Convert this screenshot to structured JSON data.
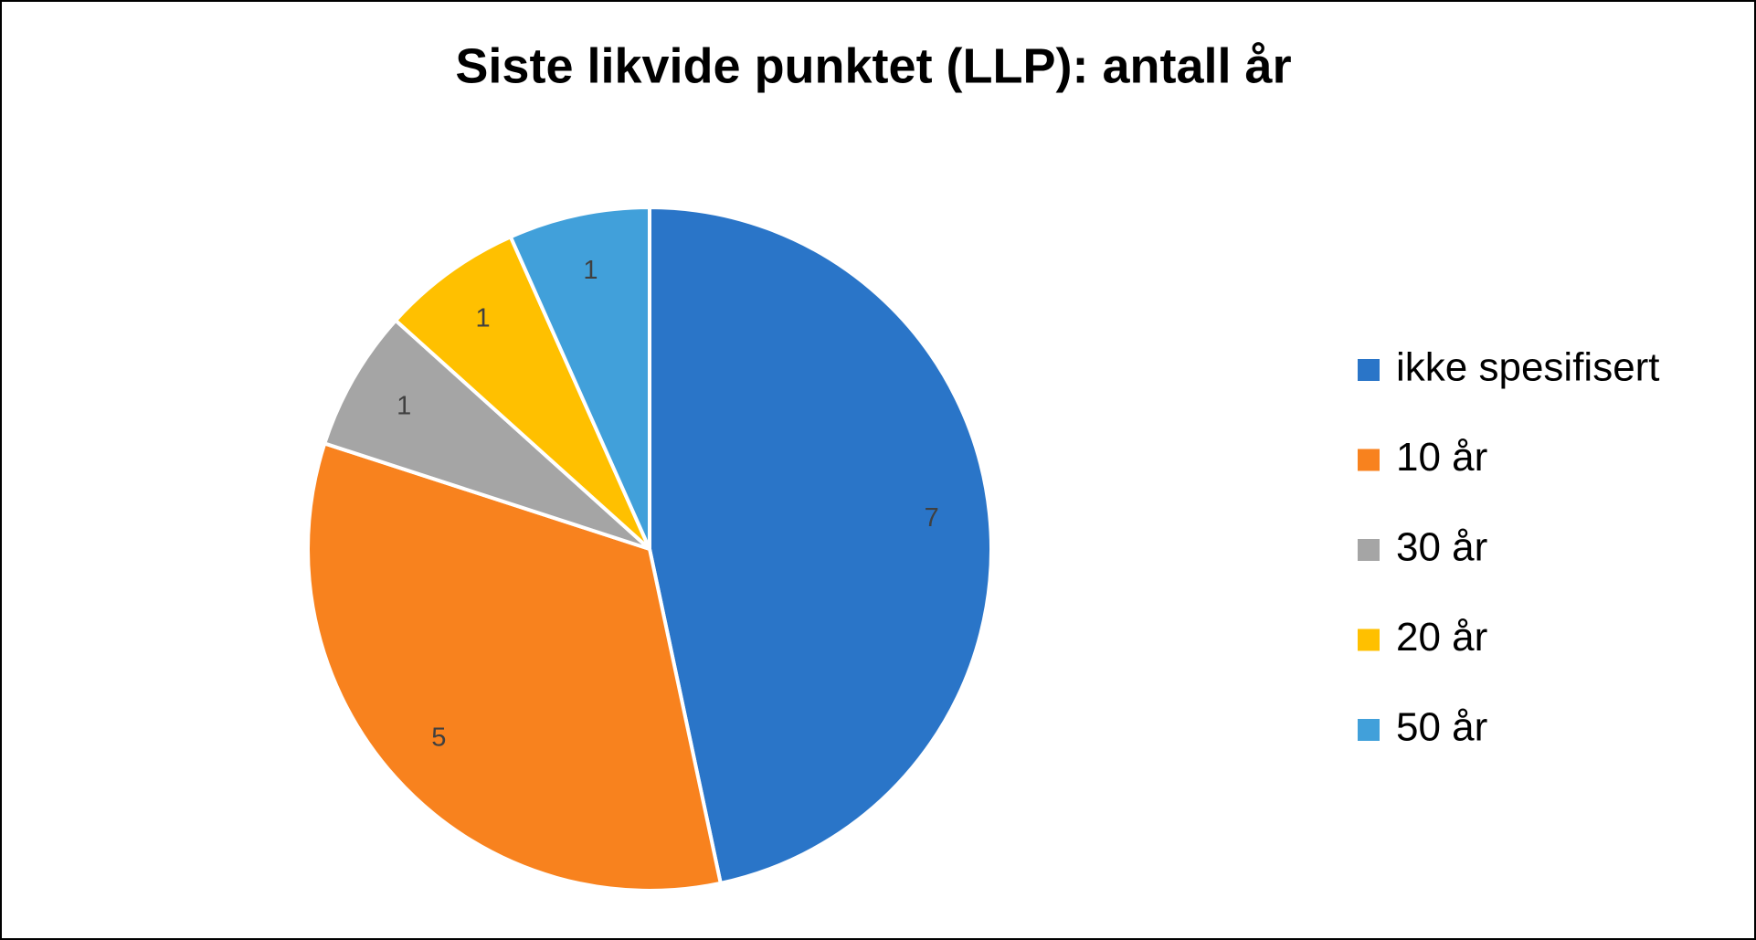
{
  "chart_data": {
    "type": "pie",
    "title": "Siste likvide punktet (LLP): antall år",
    "categories": [
      "ikke spesifisert",
      "10 år",
      "30 år",
      "20 år",
      "50 år"
    ],
    "values": [
      7,
      5,
      1,
      1,
      1
    ],
    "colors": [
      "#2a75c8",
      "#f8821e",
      "#a5a5a5",
      "#ffc000",
      "#41a0da"
    ],
    "legend": "right"
  }
}
